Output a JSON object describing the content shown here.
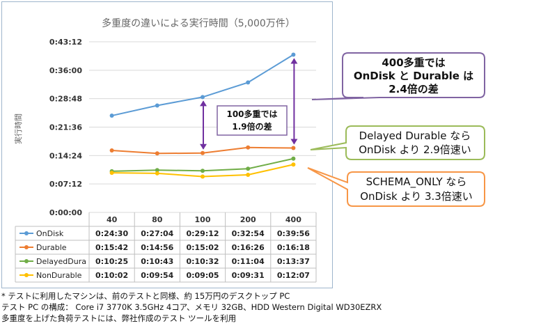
{
  "chart_data": {
    "type": "line",
    "title": "多重度の違いによる実行時間（5,000万件）",
    "ylabel": "実行時間",
    "categories": [
      "40",
      "80",
      "100",
      "200",
      "400"
    ],
    "y_ticks": [
      "0:43:12",
      "0:36:00",
      "0:28:48",
      "0:21:36",
      "0:14:24",
      "0:07:12",
      "0:00:00"
    ],
    "ylim_seconds": [
      0,
      2592
    ],
    "grid": true,
    "series": [
      {
        "name": "OnDisk",
        "color": "#5b9bd5",
        "values": [
          "0:24:30",
          "0:27:04",
          "0:29:12",
          "0:32:54",
          "0:39:56"
        ],
        "seconds": [
          1470,
          1624,
          1752,
          1974,
          2396
        ]
      },
      {
        "name": "Durable",
        "color": "#ed7d31",
        "values": [
          "0:15:42",
          "0:14:56",
          "0:15:02",
          "0:16:26",
          "0:16:18"
        ],
        "seconds": [
          942,
          896,
          902,
          986,
          978
        ]
      },
      {
        "name": "DelayedDura",
        "color": "#70ad47",
        "values": [
          "0:10:25",
          "0:10:43",
          "0:10:32",
          "0:11:04",
          "0:13:37"
        ],
        "seconds": [
          625,
          643,
          632,
          664,
          817
        ]
      },
      {
        "name": "NonDurable",
        "color": "#ffc000",
        "values": [
          "0:10:02",
          "0:09:54",
          "0:09:05",
          "0:09:31",
          "0:12:07"
        ],
        "seconds": [
          602,
          594,
          545,
          571,
          727
        ]
      }
    ]
  },
  "callouts": {
    "c400": {
      "line1": "400多重では",
      "line2": "OnDisk と Durable は",
      "line3": "2.4倍の差",
      "border": "#8064a2"
    },
    "c100": {
      "line1": "100多重では",
      "line2": "1.9倍の差",
      "border": "#8064a2"
    },
    "delayed": {
      "line1": "Delayed Durable なら",
      "line2": "OnDisk より 2.9倍速い",
      "border": "#9bbb59"
    },
    "schema": {
      "line1": "SCHEMA_ONLY なら",
      "line2": "OnDisk より 3.3倍速い",
      "border": "#f79646"
    }
  },
  "arrow_color": "#7030a0",
  "footer": {
    "line1": "* テストに利用したマシンは、前のテストと同様、約 15万円のデスクトップ PC",
    "line2": "テスト PC の構成： Core i7 3770K 3.5GHz 4コア、メモリ 32GB、HDD Western Digital WD30EZRX",
    "line3": "多重度を上げた負荷テストには、弊社作成のテスト ツールを利用"
  }
}
